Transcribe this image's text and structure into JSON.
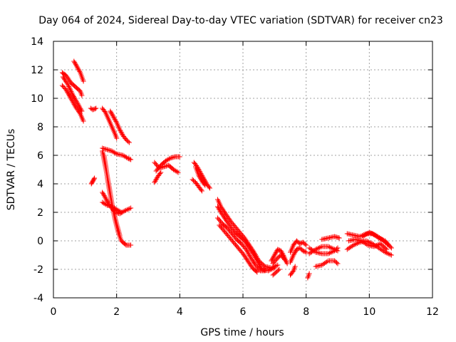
{
  "chart_data": {
    "type": "scatter",
    "title": "Day 064 of 2024, Sidereal Day-to-day VTEC variation (SDTVAR) for receiver cn23",
    "xlabel": "GPS time / hours",
    "ylabel": "SDTVAR / TECUs",
    "xlim": [
      0,
      12
    ],
    "ylim": [
      -4,
      14
    ],
    "xticks": [
      0,
      2,
      4,
      6,
      8,
      10,
      12
    ],
    "yticks": [
      -4,
      -2,
      0,
      2,
      4,
      6,
      8,
      10,
      12,
      14
    ],
    "grid": true,
    "marker": "+",
    "color": "#ff0000",
    "series": [
      {
        "name": "SDTVAR",
        "segments": [
          [
            [
              0.28,
              11.8
            ],
            [
              0.4,
              11.6
            ],
            [
              0.55,
              11.1
            ],
            [
              0.7,
              10.8
            ],
            [
              0.85,
              10.5
            ],
            [
              0.9,
              10.2
            ]
          ],
          [
            [
              0.28,
              10.9
            ],
            [
              0.4,
              10.6
            ],
            [
              0.55,
              10.0
            ],
            [
              0.7,
              9.4
            ],
            [
              0.85,
              8.9
            ],
            [
              0.95,
              8.4
            ]
          ],
          [
            [
              0.3,
              11.5
            ],
            [
              0.45,
              11.0
            ],
            [
              0.6,
              10.3
            ],
            [
              0.75,
              9.7
            ],
            [
              0.9,
              9.1
            ]
          ],
          [
            [
              0.65,
              12.6
            ],
            [
              0.75,
              12.2
            ],
            [
              0.85,
              11.8
            ],
            [
              0.95,
              11.2
            ]
          ],
          [
            [
              1.18,
              9.3
            ],
            [
              1.25,
              9.2
            ],
            [
              1.35,
              9.3
            ]
          ],
          [
            [
              1.2,
              4.0
            ],
            [
              1.25,
              4.2
            ],
            [
              1.3,
              4.4
            ]
          ],
          [
            [
              1.55,
              9.3
            ],
            [
              1.65,
              9.0
            ],
            [
              1.75,
              8.5
            ],
            [
              1.85,
              8.0
            ],
            [
              1.95,
              7.5
            ],
            [
              2.0,
              7.2
            ]
          ],
          [
            [
              1.8,
              9.1
            ],
            [
              1.9,
              8.7
            ],
            [
              2.0,
              8.3
            ],
            [
              2.1,
              7.8
            ],
            [
              2.2,
              7.4
            ],
            [
              2.3,
              7.1
            ],
            [
              2.4,
              6.9
            ]
          ],
          [
            [
              1.55,
              6.5
            ],
            [
              1.7,
              6.4
            ],
            [
              1.85,
              6.3
            ],
            [
              2.0,
              6.1
            ],
            [
              2.2,
              6.0
            ],
            [
              2.35,
              5.8
            ],
            [
              2.45,
              5.7
            ]
          ],
          [
            [
              1.55,
              6.3
            ],
            [
              1.62,
              5.5
            ],
            [
              1.7,
              4.6
            ],
            [
              1.78,
              3.6
            ],
            [
              1.85,
              2.6
            ],
            [
              1.95,
              1.5
            ],
            [
              2.05,
              0.6
            ],
            [
              2.15,
              0.0
            ],
            [
              2.3,
              -0.3
            ],
            [
              2.45,
              -0.3
            ]
          ],
          [
            [
              1.6,
              6.0
            ],
            [
              1.66,
              5.2
            ],
            [
              1.72,
              4.2
            ],
            [
              1.8,
              3.2
            ],
            [
              1.9,
              2.1
            ],
            [
              2.0,
              1.2
            ],
            [
              2.1,
              0.4
            ]
          ],
          [
            [
              1.55,
              3.4
            ],
            [
              1.65,
              3.0
            ],
            [
              1.75,
              2.6
            ],
            [
              1.85,
              2.3
            ],
            [
              1.95,
              2.0
            ],
            [
              2.1,
              1.9
            ],
            [
              2.25,
              2.1
            ],
            [
              2.45,
              2.3
            ]
          ],
          [
            [
              1.55,
              2.7
            ],
            [
              1.7,
              2.5
            ],
            [
              1.85,
              2.4
            ],
            [
              2.0,
              2.2
            ],
            [
              2.15,
              2.0
            ]
          ],
          [
            [
              3.2,
              5.5
            ],
            [
              3.35,
              5.1
            ],
            [
              3.5,
              5.2
            ],
            [
              3.65,
              5.3
            ],
            [
              3.8,
              5.0
            ],
            [
              3.95,
              4.8
            ]
          ],
          [
            [
              3.25,
              4.9
            ],
            [
              3.4,
              5.3
            ],
            [
              3.55,
              5.6
            ],
            [
              3.7,
              5.8
            ],
            [
              3.85,
              5.9
            ],
            [
              4.0,
              5.9
            ]
          ],
          [
            [
              3.2,
              4.1
            ],
            [
              3.3,
              4.5
            ],
            [
              3.4,
              4.8
            ]
          ],
          [
            [
              4.45,
              5.5
            ],
            [
              4.55,
              5.2
            ],
            [
              4.65,
              4.8
            ],
            [
              4.75,
              4.4
            ],
            [
              4.85,
              4.0
            ],
            [
              4.95,
              3.7
            ]
          ],
          [
            [
              4.5,
              5.2
            ],
            [
              4.6,
              4.6
            ],
            [
              4.7,
              4.2
            ],
            [
              4.8,
              3.9
            ]
          ],
          [
            [
              4.4,
              4.3
            ],
            [
              4.5,
              4.1
            ],
            [
              4.6,
              3.8
            ],
            [
              4.7,
              3.5
            ]
          ],
          [
            [
              5.2,
              2.9
            ],
            [
              5.3,
              2.4
            ],
            [
              5.45,
              1.9
            ],
            [
              5.6,
              1.4
            ],
            [
              5.75,
              1.0
            ],
            [
              5.9,
              0.6
            ],
            [
              6.05,
              0.2
            ],
            [
              6.2,
              -0.3
            ],
            [
              6.35,
              -0.8
            ],
            [
              6.5,
              -1.4
            ],
            [
              6.7,
              -1.8
            ],
            [
              6.9,
              -1.9
            ],
            [
              7.1,
              -1.7
            ]
          ],
          [
            [
              5.2,
              2.4
            ],
            [
              5.3,
              2.0
            ],
            [
              5.45,
              1.5
            ],
            [
              5.6,
              1.0
            ],
            [
              5.75,
              0.6
            ],
            [
              5.9,
              0.3
            ],
            [
              6.05,
              0.0
            ],
            [
              6.2,
              -0.5
            ],
            [
              6.35,
              -1.0
            ],
            [
              6.5,
              -1.6
            ],
            [
              6.6,
              -2.0
            ],
            [
              6.8,
              -2.1
            ],
            [
              7.0,
              -1.9
            ]
          ],
          [
            [
              5.2,
              1.6
            ],
            [
              5.35,
              1.2
            ],
            [
              5.5,
              0.9
            ],
            [
              5.65,
              0.5
            ],
            [
              5.8,
              0.1
            ],
            [
              5.95,
              -0.2
            ],
            [
              6.1,
              -0.6
            ],
            [
              6.25,
              -1.2
            ],
            [
              6.4,
              -1.7
            ],
            [
              6.55,
              -2.1
            ],
            [
              6.7,
              -2.1
            ]
          ],
          [
            [
              5.25,
              1.1
            ],
            [
              5.4,
              0.7
            ],
            [
              5.55,
              0.3
            ],
            [
              5.7,
              -0.1
            ],
            [
              5.85,
              -0.5
            ],
            [
              6.0,
              -0.9
            ],
            [
              6.15,
              -1.4
            ],
            [
              6.3,
              -1.9
            ],
            [
              6.45,
              -2.2
            ]
          ],
          [
            [
              6.9,
              -1.4
            ],
            [
              7.0,
              -1.0
            ],
            [
              7.1,
              -0.6
            ],
            [
              7.2,
              -0.7
            ],
            [
              7.3,
              -1.1
            ],
            [
              7.4,
              -1.6
            ]
          ],
          [
            [
              6.95,
              -1.6
            ],
            [
              7.1,
              -1.2
            ],
            [
              7.2,
              -1.0
            ],
            [
              7.35,
              -1.4
            ]
          ],
          [
            [
              6.95,
              -2.4
            ],
            [
              7.05,
              -2.2
            ],
            [
              7.15,
              -2.0
            ]
          ],
          [
            [
              7.5,
              -0.8
            ],
            [
              7.6,
              -0.3
            ],
            [
              7.7,
              0.0
            ],
            [
              7.8,
              -0.2
            ],
            [
              7.9,
              -0.1
            ],
            [
              8.0,
              -0.3
            ]
          ],
          [
            [
              7.5,
              -1.5
            ],
            [
              7.6,
              -1.0
            ],
            [
              7.7,
              -0.6
            ],
            [
              7.8,
              -0.5
            ],
            [
              7.9,
              -0.7
            ],
            [
              8.0,
              -0.8
            ]
          ],
          [
            [
              7.5,
              -2.4
            ],
            [
              7.6,
              -2.1
            ],
            [
              7.65,
              -1.8
            ]
          ],
          [
            [
              8.1,
              -0.5
            ],
            [
              8.3,
              -0.8
            ],
            [
              8.5,
              -0.9
            ],
            [
              8.7,
              -0.9
            ],
            [
              8.9,
              -0.7
            ],
            [
              9.0,
              -0.5
            ]
          ],
          [
            [
              8.1,
              -0.9
            ],
            [
              8.3,
              -0.6
            ],
            [
              8.5,
              -0.4
            ],
            [
              8.7,
              -0.4
            ],
            [
              8.9,
              -0.6
            ],
            [
              9.0,
              -0.7
            ]
          ],
          [
            [
              8.3,
              -1.8
            ],
            [
              8.5,
              -1.7
            ],
            [
              8.7,
              -1.4
            ],
            [
              8.9,
              -1.4
            ],
            [
              9.0,
              -1.6
            ]
          ],
          [
            [
              8.5,
              0.1
            ],
            [
              8.7,
              0.2
            ],
            [
              8.9,
              0.3
            ],
            [
              9.05,
              0.2
            ]
          ],
          [
            [
              8.05,
              -2.6
            ],
            [
              8.1,
              -2.3
            ]
          ],
          [
            [
              9.3,
              -0.6
            ],
            [
              9.5,
              -0.3
            ],
            [
              9.7,
              -0.1
            ],
            [
              9.9,
              0.0
            ],
            [
              10.1,
              -0.2
            ],
            [
              10.3,
              -0.5
            ],
            [
              10.5,
              -0.8
            ],
            [
              10.7,
              -1.0
            ]
          ],
          [
            [
              9.3,
              0.5
            ],
            [
              9.5,
              0.4
            ],
            [
              9.7,
              0.3
            ],
            [
              9.9,
              0.5
            ],
            [
              10.1,
              0.5
            ],
            [
              10.3,
              0.2
            ],
            [
              10.5,
              0.0
            ],
            [
              10.7,
              -0.5
            ]
          ],
          [
            [
              9.35,
              0.0
            ],
            [
              9.55,
              0.1
            ],
            [
              9.75,
              0.0
            ],
            [
              9.95,
              -0.3
            ],
            [
              10.15,
              -0.4
            ],
            [
              10.35,
              -0.2
            ],
            [
              10.55,
              -0.6
            ]
          ],
          [
            [
              9.8,
              0.3
            ],
            [
              10.0,
              0.6
            ],
            [
              10.2,
              0.4
            ],
            [
              10.4,
              0.1
            ],
            [
              10.6,
              -0.3
            ]
          ]
        ]
      }
    ]
  }
}
